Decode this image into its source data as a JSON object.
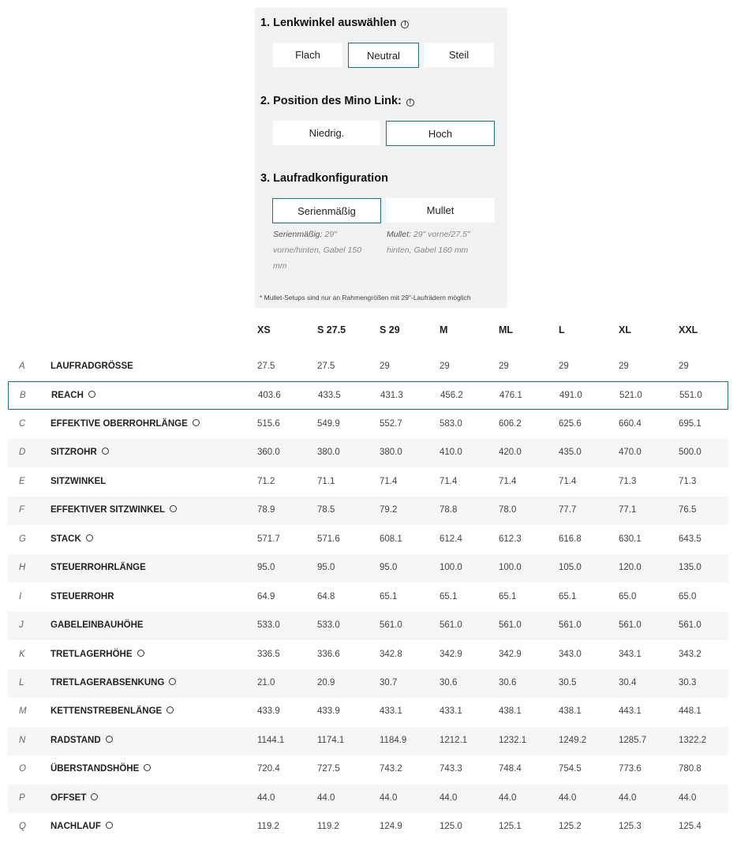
{
  "config": {
    "step1": {
      "title": "1. Lenkwinkel auswählen",
      "options": [
        "Flach",
        "Neutral",
        "Steil"
      ],
      "selected": "Neutral"
    },
    "step2": {
      "title": "2. Position des Mino Link:",
      "options": [
        "Niedrig.",
        "Hoch"
      ],
      "selected": "Hoch"
    },
    "step3": {
      "title": "3. Laufradkonfiguration",
      "options": [
        "Serienmäßig",
        "Mullet"
      ],
      "selected": "Serienmäßig",
      "desc_standard_label": "Serienmäßig:",
      "desc_standard_text": " 29\" vorne/hinten, Gabel 150 mm",
      "desc_mullet_label": "Mullet:",
      "desc_mullet_text": " 29\" vorne/27.5\" hinten, Gabel 160 mm"
    },
    "footnote": "* Mullet-Setups sind nur an Rahmengrößen mit 29\"-Laufrädern möglich"
  },
  "accent_color": "#1f6f8b",
  "table": {
    "sizes": [
      "XS",
      "S 27.5",
      "S 29",
      "M",
      "ML",
      "L",
      "XL",
      "XXL"
    ],
    "highlighted_row": "B",
    "rows": [
      {
        "letter": "A",
        "label": "LAUFRADGRÖSSE",
        "info": false,
        "values": [
          "27.5",
          "27.5",
          "29",
          "29",
          "29",
          "29",
          "29",
          "29"
        ]
      },
      {
        "letter": "B",
        "label": "REACH",
        "info": true,
        "values": [
          "403.6",
          "433.5",
          "431.3",
          "456.2",
          "476.1",
          "491.0",
          "521.0",
          "551.0"
        ]
      },
      {
        "letter": "C",
        "label": "EFFEKTIVE OBERROHRLÄNGE",
        "info": true,
        "values": [
          "515.6",
          "549.9",
          "552.7",
          "583.0",
          "606.2",
          "625.6",
          "660.4",
          "695.1"
        ]
      },
      {
        "letter": "D",
        "label": "SITZROHR",
        "info": true,
        "values": [
          "360.0",
          "380.0",
          "380.0",
          "410.0",
          "420.0",
          "435.0",
          "470.0",
          "500.0"
        ]
      },
      {
        "letter": "E",
        "label": "SITZWINKEL",
        "info": false,
        "values": [
          "71.2",
          "71.1",
          "71.4",
          "71.4",
          "71.4",
          "71.4",
          "71.3",
          "71.3"
        ]
      },
      {
        "letter": "F",
        "label": "EFFEKTIVER SITZWINKEL",
        "info": true,
        "values": [
          "78.9",
          "78.5",
          "79.2",
          "78.8",
          "78.0",
          "77.7",
          "77.1",
          "76.5"
        ]
      },
      {
        "letter": "G",
        "label": "STACK",
        "info": true,
        "values": [
          "571.7",
          "571.6",
          "608.1",
          "612.4",
          "612.3",
          "616.8",
          "630.1",
          "643.5"
        ]
      },
      {
        "letter": "H",
        "label": "STEUERROHRLÄNGE",
        "info": false,
        "values": [
          "95.0",
          "95.0",
          "95.0",
          "100.0",
          "100.0",
          "105.0",
          "120.0",
          "135.0"
        ]
      },
      {
        "letter": "I",
        "label": "STEUERROHR",
        "info": false,
        "values": [
          "64.9",
          "64.8",
          "65.1",
          "65.1",
          "65.1",
          "65.1",
          "65.0",
          "65.0"
        ]
      },
      {
        "letter": "J",
        "label": "GABELEINBAUHÖHE",
        "info": false,
        "values": [
          "533.0",
          "533.0",
          "561.0",
          "561.0",
          "561.0",
          "561.0",
          "561.0",
          "561.0"
        ]
      },
      {
        "letter": "K",
        "label": "TRETLAGERHÖHE",
        "info": true,
        "values": [
          "336.5",
          "336.6",
          "342.8",
          "342.9",
          "342.9",
          "343.0",
          "343.1",
          "343.2"
        ]
      },
      {
        "letter": "L",
        "label": "TRETLAGERABSENKUNG",
        "info": true,
        "values": [
          "21.0",
          "20.9",
          "30.7",
          "30.6",
          "30.6",
          "30.5",
          "30.4",
          "30.3"
        ]
      },
      {
        "letter": "M",
        "label": "KETTENSTREBENLÄNGE",
        "info": true,
        "values": [
          "433.9",
          "433.9",
          "433.1",
          "433.1",
          "438.1",
          "438.1",
          "443.1",
          "448.1"
        ]
      },
      {
        "letter": "N",
        "label": "RADSTAND",
        "info": true,
        "values": [
          "1144.1",
          "1174.1",
          "1184.9",
          "1212.1",
          "1232.1",
          "1249.2",
          "1285.7",
          "1322.2"
        ]
      },
      {
        "letter": "O",
        "label": "ÜBERSTANDSHÖHE",
        "info": true,
        "values": [
          "720.4",
          "727.5",
          "743.2",
          "743.3",
          "748.4",
          "754.5",
          "773.6",
          "780.8"
        ]
      },
      {
        "letter": "P",
        "label": "OFFSET",
        "info": true,
        "values": [
          "44.0",
          "44.0",
          "44.0",
          "44.0",
          "44.0",
          "44.0",
          "44.0",
          "44.0"
        ]
      },
      {
        "letter": "Q",
        "label": "NACHLAUF",
        "info": true,
        "values": [
          "119.2",
          "119.2",
          "124.9",
          "125.0",
          "125.1",
          "125.2",
          "125.3",
          "125.4"
        ]
      }
    ]
  }
}
